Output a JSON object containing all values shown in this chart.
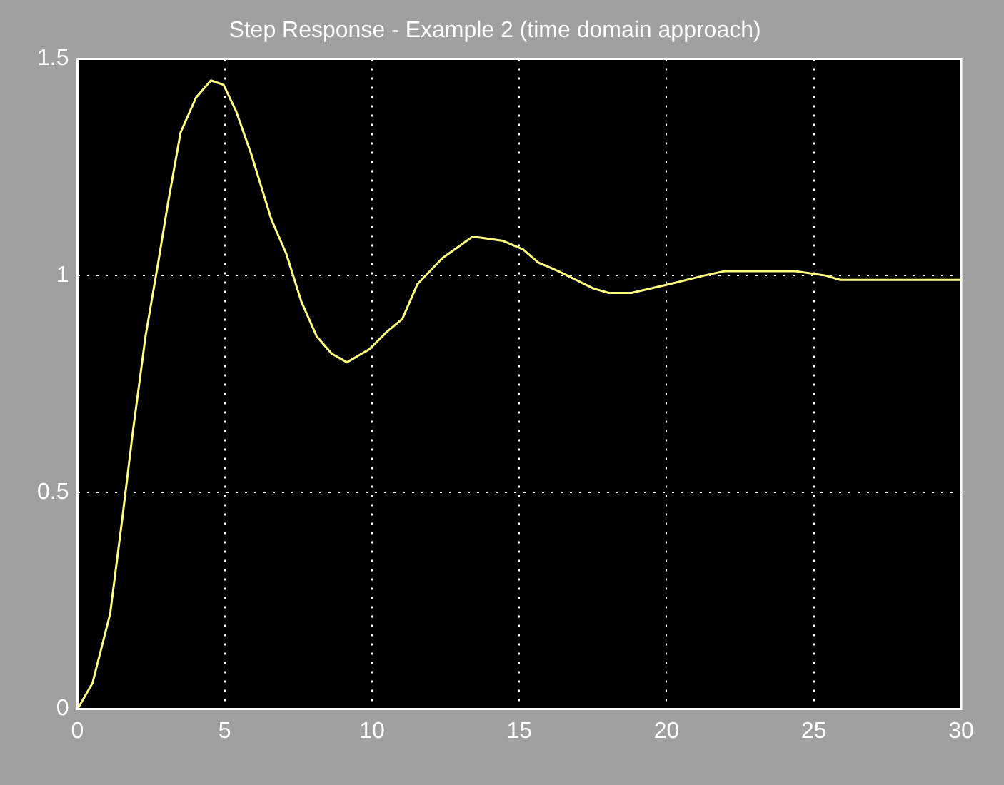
{
  "chart_data": {
    "type": "line",
    "title": "Step Response - Example 2 (time domain approach)",
    "series": [
      {
        "color": "#ffff80",
        "x": [
          0,
          0.51,
          1.11,
          1.54,
          1.88,
          2.31,
          2.74,
          3.08,
          3.5,
          4.02,
          4.53,
          4.96,
          5.38,
          5.9,
          6.58,
          7.09,
          7.6,
          8.12,
          8.63,
          9.15,
          9.91,
          10.5,
          11.03,
          11.54,
          12.39,
          13.42,
          14.45,
          15.13,
          15.64,
          16.33,
          17.52,
          18.04,
          18.8,
          20.09,
          21.28,
          21.97,
          24.37,
          25.39,
          25.9,
          30
        ],
        "values": [
          0,
          0.06,
          0.22,
          0.45,
          0.64,
          0.86,
          1.03,
          1.17,
          1.33,
          1.41,
          1.45,
          1.44,
          1.38,
          1.28,
          1.13,
          1.05,
          0.94,
          0.86,
          0.82,
          0.8,
          0.83,
          0.87,
          0.9,
          0.98,
          1.04,
          1.09,
          1.08,
          1.06,
          1.03,
          1.01,
          0.97,
          0.96,
          0.96,
          0.98,
          1.0,
          1.01,
          1.01,
          1.0,
          0.99,
          0.99
        ]
      }
    ],
    "xlim": [
      0,
      30
    ],
    "xticks": [
      0,
      5,
      10,
      15,
      20,
      25,
      30
    ],
    "ylim": [
      0,
      1.5
    ],
    "yticks": [
      0,
      0.5,
      1,
      1.5
    ],
    "grid": true,
    "marker": "none",
    "line_style": "solid"
  }
}
